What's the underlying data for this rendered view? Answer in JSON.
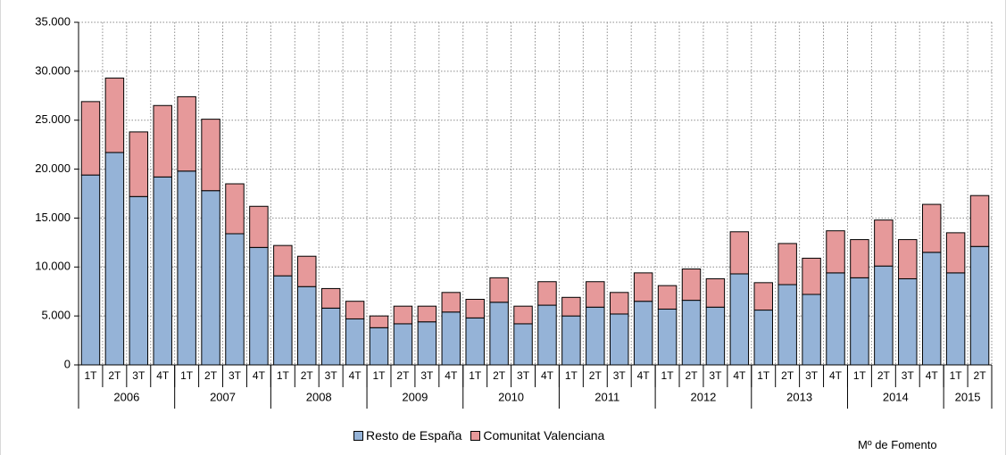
{
  "chart_data": {
    "type": "bar",
    "stacked": true,
    "years": [
      {
        "label": "2006",
        "quarters": 4
      },
      {
        "label": "2007",
        "quarters": 4
      },
      {
        "label": "2008",
        "quarters": 4
      },
      {
        "label": "2009",
        "quarters": 4
      },
      {
        "label": "2010",
        "quarters": 4
      },
      {
        "label": "2011",
        "quarters": 4
      },
      {
        "label": "2012",
        "quarters": 4
      },
      {
        "label": "2013",
        "quarters": 4
      },
      {
        "label": "2014",
        "quarters": 4
      },
      {
        "label": "2015",
        "quarters": 2
      }
    ],
    "categories": [
      "1T",
      "2T",
      "3T",
      "4T",
      "1T",
      "2T",
      "3T",
      "4T",
      "1T",
      "2T",
      "3T",
      "4T",
      "1T",
      "2T",
      "3T",
      "4T",
      "1T",
      "2T",
      "3T",
      "4T",
      "1T",
      "2T",
      "3T",
      "4T",
      "1T",
      "2T",
      "3T",
      "4T",
      "1T",
      "2T",
      "3T",
      "4T",
      "1T",
      "2T",
      "3T",
      "4T",
      "1T",
      "2T"
    ],
    "series": [
      {
        "name": "Resto de España",
        "color": "#95b3d7",
        "values": [
          19400,
          21700,
          17200,
          19200,
          19800,
          17800,
          13400,
          12000,
          9100,
          8000,
          5800,
          4700,
          3800,
          4200,
          4400,
          5400,
          4800,
          6400,
          4200,
          6100,
          5000,
          5900,
          5200,
          6500,
          5700,
          6600,
          5900,
          9300,
          5600,
          8200,
          7200,
          9400,
          8900,
          10100,
          8800,
          11500,
          9400,
          12100
        ]
      },
      {
        "name": "Comunitat Valenciana",
        "color": "#e6999a",
        "values": [
          7500,
          7600,
          6600,
          7300,
          7600,
          7300,
          5100,
          4200,
          3100,
          3100,
          2000,
          1800,
          1200,
          1800,
          1600,
          2000,
          1900,
          2500,
          1800,
          2400,
          1900,
          2600,
          2200,
          2900,
          2400,
          3200,
          2900,
          4300,
          2800,
          4200,
          3700,
          4300,
          3900,
          4700,
          4000,
          4900,
          4100,
          5200
        ]
      }
    ],
    "y_tick_labels": [
      "0",
      "5.000",
      "10.000",
      "15.000",
      "20.000",
      "25.000",
      "30.000",
      "35.000"
    ],
    "ylim": [
      0,
      35000
    ],
    "ytick_step": 5000,
    "grid": true,
    "legend_position": "bottom",
    "source_note": "Mº de Fomento"
  }
}
